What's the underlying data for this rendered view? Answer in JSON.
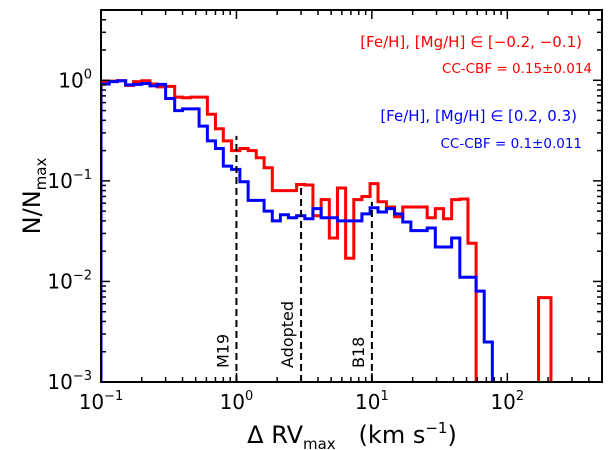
{
  "chart_data": {
    "type": "histogram-step",
    "xscale": "log",
    "yscale": "log",
    "xlim": [
      0.1,
      500
    ],
    "ylim": [
      0.001,
      5
    ],
    "xticks": [
      {
        "value": 0.1,
        "base": "10",
        "exp": "−1"
      },
      {
        "value": 1,
        "base": "10",
        "exp": "0"
      },
      {
        "value": 10,
        "base": "10",
        "exp": "1"
      },
      {
        "value": 100,
        "base": "10",
        "exp": "2"
      }
    ],
    "yticks": [
      {
        "value": 0.001,
        "base": "10",
        "exp": "−3"
      },
      {
        "value": 0.01,
        "base": "10",
        "exp": "−2"
      },
      {
        "value": 0.1,
        "base": "10",
        "exp": "−1"
      },
      {
        "value": 1,
        "base": "10",
        "exp": "0"
      }
    ],
    "xlabel": {
      "prefix": "Δ RV",
      "sub": "max",
      "suffix": "   (km s",
      "sup": "−1",
      "end": ")"
    },
    "ylabel": {
      "main": "N/N",
      "sub": "max"
    },
    "series": [
      {
        "name": "[Fe/H], [Mg/H] ∈ [−0.2, −0.1)",
        "annotation": "CC-CBF = 0.15±0.014",
        "color": "#ff0000",
        "bins": [
          [
            0.1,
            0.115,
            0.95
          ],
          [
            0.115,
            0.132,
            0.98
          ],
          [
            0.132,
            0.152,
            0.99
          ],
          [
            0.152,
            0.174,
            0.89
          ],
          [
            0.174,
            0.2,
            0.97
          ],
          [
            0.2,
            0.23,
            0.99
          ],
          [
            0.23,
            0.26,
            0.92
          ],
          [
            0.26,
            0.3,
            0.86
          ],
          [
            0.3,
            0.35,
            0.87
          ],
          [
            0.35,
            0.4,
            0.68
          ],
          [
            0.4,
            0.46,
            0.67
          ],
          [
            0.46,
            0.53,
            0.68
          ],
          [
            0.53,
            0.61,
            0.68
          ],
          [
            0.61,
            0.7,
            0.46
          ],
          [
            0.7,
            0.8,
            0.33
          ],
          [
            0.8,
            0.92,
            0.25
          ],
          [
            0.92,
            1.06,
            0.2
          ],
          [
            1.06,
            1.22,
            0.21
          ],
          [
            1.22,
            1.4,
            0.2
          ],
          [
            1.4,
            1.6,
            0.17
          ],
          [
            1.6,
            1.84,
            0.135
          ],
          [
            1.84,
            2.11,
            0.08
          ],
          [
            2.11,
            2.42,
            0.08
          ],
          [
            2.42,
            2.78,
            0.08
          ],
          [
            2.78,
            3.2,
            0.092
          ],
          [
            3.2,
            3.67,
            0.091
          ],
          [
            3.67,
            4.22,
            0.045
          ],
          [
            4.22,
            4.85,
            0.065
          ],
          [
            4.85,
            5.57,
            0.027
          ],
          [
            5.57,
            6.4,
            0.085
          ],
          [
            6.4,
            7.35,
            0.017
          ],
          [
            7.35,
            8.44,
            0.065
          ],
          [
            8.44,
            9.7,
            0.07
          ],
          [
            9.7,
            11.1,
            0.094
          ],
          [
            11.1,
            12.8,
            0.062
          ],
          [
            12.8,
            14.7,
            0.055
          ],
          [
            14.7,
            16.9,
            0.044
          ],
          [
            16.9,
            19.4,
            0.055
          ],
          [
            19.4,
            22.3,
            0.055
          ],
          [
            22.3,
            25.6,
            0.055
          ],
          [
            25.6,
            29.4,
            0.043
          ],
          [
            29.4,
            33.8,
            0.053
          ],
          [
            33.8,
            38.8,
            0.042
          ],
          [
            38.8,
            44.6,
            0.065
          ],
          [
            44.6,
            51.2,
            0.066
          ],
          [
            51.2,
            58.8,
            0.024
          ],
          [
            58.8,
            67.5,
            0.0009
          ],
          [
            170,
            210,
            0.0069
          ]
        ]
      },
      {
        "name": "[Fe/H], [Mg/H] ∈ [0.2, 0.3)",
        "annotation": "CC-CBF = 0.1±0.011",
        "color": "#0000ff",
        "bins": [
          [
            0.1,
            0.115,
            0.92
          ],
          [
            0.115,
            0.132,
            0.97
          ],
          [
            0.132,
            0.152,
            0.99
          ],
          [
            0.152,
            0.174,
            0.9
          ],
          [
            0.174,
            0.2,
            0.91
          ],
          [
            0.2,
            0.23,
            0.93
          ],
          [
            0.23,
            0.26,
            0.88
          ],
          [
            0.26,
            0.3,
            0.91
          ],
          [
            0.3,
            0.35,
            0.66
          ],
          [
            0.35,
            0.4,
            0.5
          ],
          [
            0.4,
            0.46,
            0.52
          ],
          [
            0.46,
            0.53,
            0.52
          ],
          [
            0.53,
            0.61,
            0.35
          ],
          [
            0.61,
            0.7,
            0.25
          ],
          [
            0.7,
            0.8,
            0.21
          ],
          [
            0.8,
            0.92,
            0.14
          ],
          [
            0.92,
            1.06,
            0.13
          ],
          [
            1.06,
            1.22,
            0.098
          ],
          [
            1.22,
            1.4,
            0.064
          ],
          [
            1.4,
            1.6,
            0.064
          ],
          [
            1.6,
            1.84,
            0.05
          ],
          [
            1.84,
            2.11,
            0.04
          ],
          [
            2.11,
            2.42,
            0.046
          ],
          [
            2.42,
            2.78,
            0.043
          ],
          [
            2.78,
            3.2,
            0.045
          ],
          [
            3.2,
            3.67,
            0.042
          ],
          [
            3.67,
            4.22,
            0.053
          ],
          [
            4.22,
            4.85,
            0.043
          ],
          [
            4.85,
            5.57,
            0.043
          ],
          [
            5.57,
            6.4,
            0.04
          ],
          [
            6.4,
            7.35,
            0.04
          ],
          [
            7.35,
            8.44,
            0.04
          ],
          [
            8.44,
            9.7,
            0.047
          ],
          [
            9.7,
            11.1,
            0.054
          ],
          [
            11.1,
            12.8,
            0.049
          ],
          [
            12.8,
            14.7,
            0.053
          ],
          [
            14.7,
            16.9,
            0.047
          ],
          [
            16.9,
            19.4,
            0.039
          ],
          [
            19.4,
            22.3,
            0.032
          ],
          [
            22.3,
            25.6,
            0.032
          ],
          [
            25.6,
            29.4,
            0.034
          ],
          [
            29.4,
            33.8,
            0.022
          ],
          [
            33.8,
            38.8,
            0.022
          ],
          [
            38.8,
            44.6,
            0.027
          ],
          [
            44.6,
            51.2,
            0.011
          ],
          [
            51.2,
            58.8,
            0.011
          ],
          [
            58.8,
            67.5,
            0.008
          ],
          [
            67.5,
            77.5,
            0.0025
          ],
          [
            77.5,
            89,
            0.0009
          ]
        ]
      }
    ],
    "reference_lines": [
      {
        "label": "M19",
        "x": 1,
        "ytop": 0.28
      },
      {
        "label": "Adopted",
        "x": 3,
        "ytop": 0.092
      },
      {
        "label": "B18",
        "x": 10,
        "ytop": 0.062
      }
    ]
  }
}
